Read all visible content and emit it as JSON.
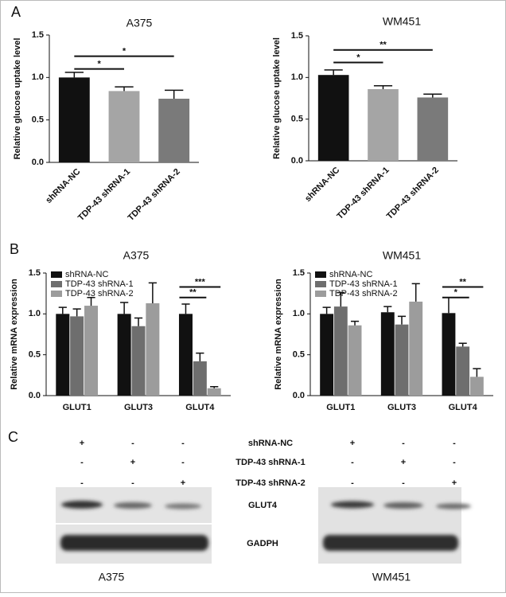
{
  "panel_labels": [
    "A",
    "B",
    "C"
  ],
  "chart_data": [
    {
      "type": "bar",
      "title": "A375",
      "ylabel": "Relative glucose uptake level",
      "categories": [
        "shRNA-NC",
        "TDP-43 shRNA-1",
        "TDP-43 shRNA-2"
      ],
      "values": [
        1.0,
        0.84,
        0.75
      ],
      "errors": [
        0.06,
        0.05,
        0.1
      ],
      "colors": [
        "#111111",
        "#a5a5a5",
        "#7a7a7a"
      ],
      "ylim": [
        0,
        1.5
      ],
      "yticks": [
        {
          "value": 0,
          "label": "0.0"
        },
        {
          "value": 0.5,
          "label": "0.5"
        },
        {
          "value": 1,
          "label": "1.0"
        },
        {
          "value": 1.5,
          "label": "1.5"
        }
      ],
      "significance": [
        "*",
        "*"
      ]
    },
    {
      "type": "bar",
      "title": "WM451",
      "ylabel": "Relative glucose uptake level",
      "categories": [
        "shRNA-NC",
        "TDP-43 shRNA-1",
        "TDP-43 shRNA-2"
      ],
      "values": [
        1.03,
        0.86,
        0.76
      ],
      "errors": [
        0.06,
        0.04,
        0.04
      ],
      "colors": [
        "#111111",
        "#a5a5a5",
        "#7a7a7a"
      ],
      "ylim": [
        0,
        1.5
      ],
      "yticks": [
        {
          "value": 0,
          "label": "0.0"
        },
        {
          "value": 0.5,
          "label": "0.5"
        },
        {
          "value": 1,
          "label": "1.0"
        },
        {
          "value": 1.5,
          "label": "1.5"
        }
      ],
      "significance": [
        "*",
        "**"
      ]
    },
    {
      "type": "bar",
      "title": "A375",
      "ylabel": "Relative mRNA expression",
      "categories": [
        "GLUT1",
        "GLUT3",
        "GLUT4"
      ],
      "series": [
        {
          "name": "shRNA-NC",
          "color": "#111111",
          "values": [
            1.0,
            1.0,
            1.0
          ],
          "errors": [
            0.08,
            0.14,
            0.12
          ]
        },
        {
          "name": "TDP-43 shRNA-1",
          "color": "#6e6e6e",
          "values": [
            0.97,
            0.85,
            0.42
          ],
          "errors": [
            0.09,
            0.1,
            0.1
          ]
        },
        {
          "name": "TDP-43 shRNA-2",
          "color": "#9c9c9c",
          "values": [
            1.1,
            1.13,
            0.09
          ],
          "errors": [
            0.1,
            0.25,
            0.02
          ]
        }
      ],
      "ylim": [
        0,
        1.5
      ],
      "yticks": [
        {
          "value": 0,
          "label": "0.0"
        },
        {
          "value": 0.5,
          "label": "0.5"
        },
        {
          "value": 1,
          "label": "1.0"
        },
        {
          "value": 1.5,
          "label": "1.5"
        }
      ],
      "significance": [
        "**",
        "***"
      ]
    },
    {
      "type": "bar",
      "title": "WM451",
      "ylabel": "Relative mRNA expression",
      "categories": [
        "GLUT1",
        "GLUT3",
        "GLUT4"
      ],
      "series": [
        {
          "name": "shRNA-NC",
          "color": "#111111",
          "values": [
            1.0,
            1.02,
            1.01
          ],
          "errors": [
            0.08,
            0.07,
            0.19
          ]
        },
        {
          "name": "TDP-43 shRNA-1",
          "color": "#6e6e6e",
          "values": [
            1.09,
            0.87,
            0.6
          ],
          "errors": [
            0.17,
            0.1,
            0.04
          ]
        },
        {
          "name": "TDP-43 shRNA-2",
          "color": "#9c9c9c",
          "values": [
            0.86,
            1.15,
            0.23
          ],
          "errors": [
            0.05,
            0.22,
            0.1
          ]
        }
      ],
      "ylim": [
        0,
        1.5
      ],
      "yticks": [
        {
          "value": 0,
          "label": "0.0"
        },
        {
          "value": 0.5,
          "label": "0.5"
        },
        {
          "value": 1,
          "label": "1.0"
        },
        {
          "value": 1.5,
          "label": "1.5"
        }
      ],
      "significance": [
        "*",
        "**"
      ]
    }
  ],
  "blot": {
    "conditions": [
      {
        "label": "shRNA-NC",
        "signs": [
          "+",
          "-",
          "-"
        ]
      },
      {
        "label": "TDP-43 shRNA-1",
        "signs": [
          "-",
          "+",
          "-"
        ]
      },
      {
        "label": "TDP-43 shRNA-2",
        "signs": [
          "-",
          "-",
          "+"
        ]
      }
    ],
    "bands": [
      "GLUT4",
      "GADPH"
    ],
    "cell_lines": [
      "A375",
      "WM451"
    ]
  }
}
